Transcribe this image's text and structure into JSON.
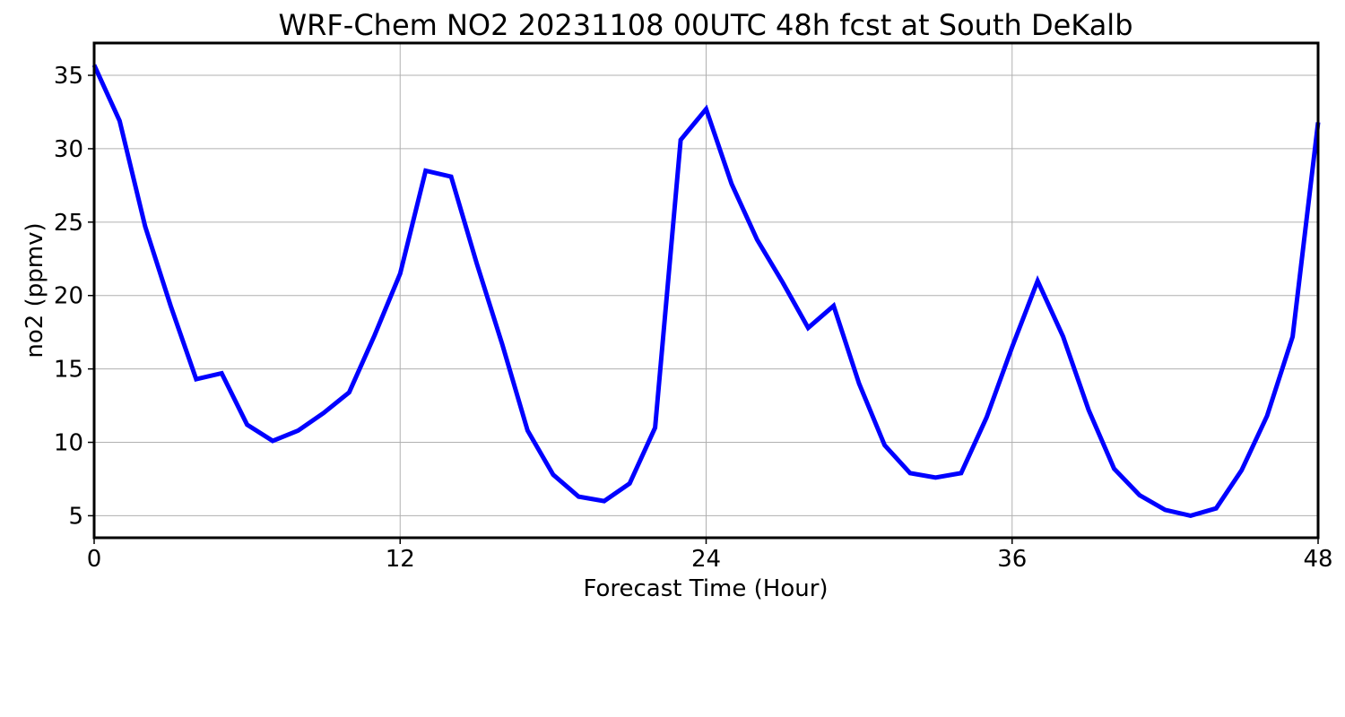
{
  "chart_data": {
    "type": "line",
    "title": "WRF-Chem NO2  20231108 00UTC 48h fcst at South DeKalb",
    "xlabel": "Forecast Time (Hour)",
    "ylabel": "no2  (ppmv)",
    "xlim": [
      0,
      48
    ],
    "ylim": [
      3.5,
      37.2
    ],
    "xticks": [
      0,
      12,
      24,
      36,
      48
    ],
    "yticks": [
      5,
      10,
      15,
      20,
      25,
      30,
      35
    ],
    "grid": true,
    "line_color": "#0000ff",
    "series": [
      {
        "x": [
          0,
          1,
          2,
          3,
          4,
          5,
          6,
          7,
          8,
          9,
          10,
          11,
          12,
          13,
          14,
          15,
          16,
          17,
          18,
          19,
          20,
          21,
          22,
          23,
          24,
          25,
          26,
          27,
          28,
          29,
          30,
          31,
          32,
          33,
          34,
          35,
          36,
          37,
          38,
          39,
          40,
          41,
          42,
          43,
          44,
          45,
          46,
          47,
          48
        ],
        "values": [
          35.7,
          31.9,
          24.7,
          19.3,
          14.3,
          14.7,
          11.2,
          10.1,
          10.8,
          12.0,
          13.4,
          17.3,
          21.5,
          28.5,
          28.1,
          22.2,
          16.7,
          10.8,
          7.8,
          6.3,
          6.0,
          7.2,
          11.0,
          30.6,
          32.7,
          27.6,
          23.8,
          20.9,
          17.8,
          19.3,
          14.0,
          9.8,
          7.9,
          7.6,
          7.9,
          11.7,
          16.5,
          21.0,
          17.2,
          12.2,
          8.2,
          6.4,
          5.4,
          5.0,
          5.5,
          8.1,
          11.8,
          17.2,
          31.8
        ]
      }
    ]
  }
}
